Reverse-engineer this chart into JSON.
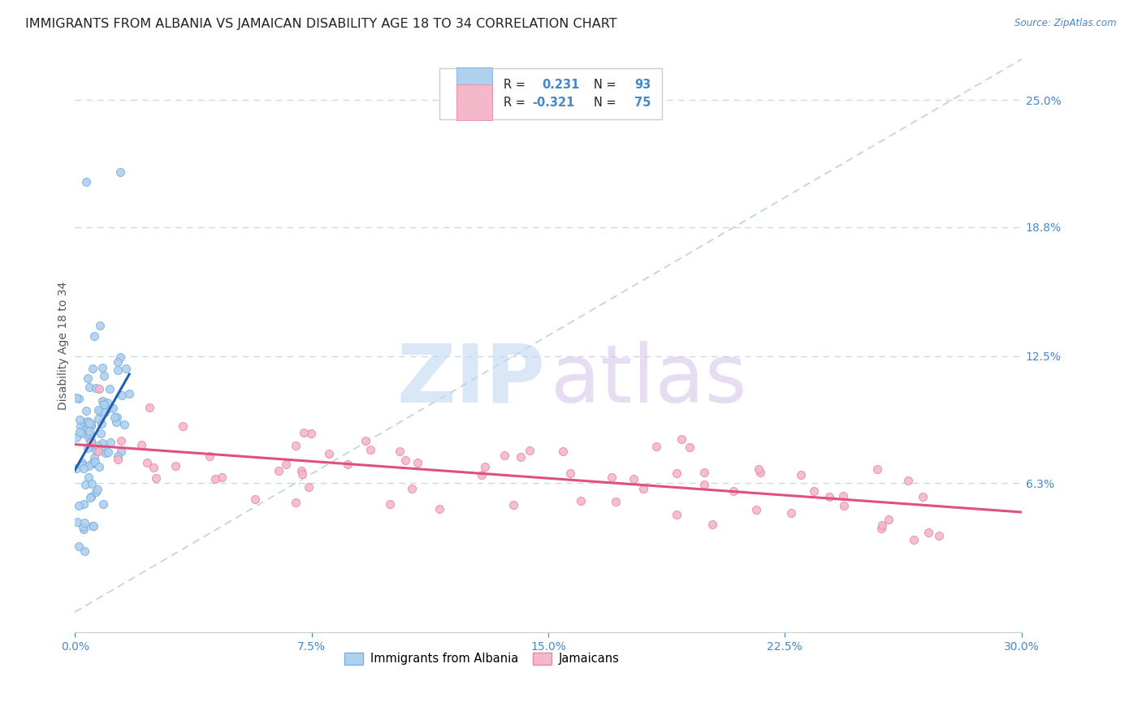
{
  "title": "IMMIGRANTS FROM ALBANIA VS JAMAICAN DISABILITY AGE 18 TO 34 CORRELATION CHART",
  "source": "Source: ZipAtlas.com",
  "ylabel": "Disability Age 18 to 34",
  "xlabel_ticks": [
    "0.0%",
    "7.5%",
    "15.0%",
    "22.5%",
    "30.0%"
  ],
  "xlabel_tick_vals": [
    0.0,
    0.075,
    0.15,
    0.225,
    0.3
  ],
  "ylabel_ticks": [
    "25.0%",
    "18.8%",
    "12.5%",
    "6.3%"
  ],
  "ylabel_tick_vals": [
    0.25,
    0.188,
    0.125,
    0.063
  ],
  "xlim": [
    0.0,
    0.3
  ],
  "ylim": [
    -0.01,
    0.27
  ],
  "albania_R": 0.231,
  "albania_N": 93,
  "jamaica_R": -0.321,
  "jamaica_N": 75,
  "legend_label_albania": "Immigrants from Albania",
  "legend_label_jamaica": "Jamaicans",
  "albania_color": "#afd0ef",
  "albania_edge": "#7ab0dd",
  "jamaica_color": "#f5b8ca",
  "jamaica_edge": "#e888a5",
  "albania_trend_color": "#2060b0",
  "jamaica_trend_color": "#e0507a",
  "ref_line_color": "#b8cee0",
  "grid_color": "#c8d4e0",
  "background_color": "#ffffff",
  "title_fontsize": 11.5,
  "axis_label_fontsize": 10,
  "tick_fontsize": 10,
  "tick_color": "#4488cc",
  "text_color": "#222222",
  "source_color": "#4488cc",
  "legend_border_color": "#cccccc",
  "watermark_zip_color": "#c0d8f0",
  "watermark_atlas_color": "#d0bce8"
}
